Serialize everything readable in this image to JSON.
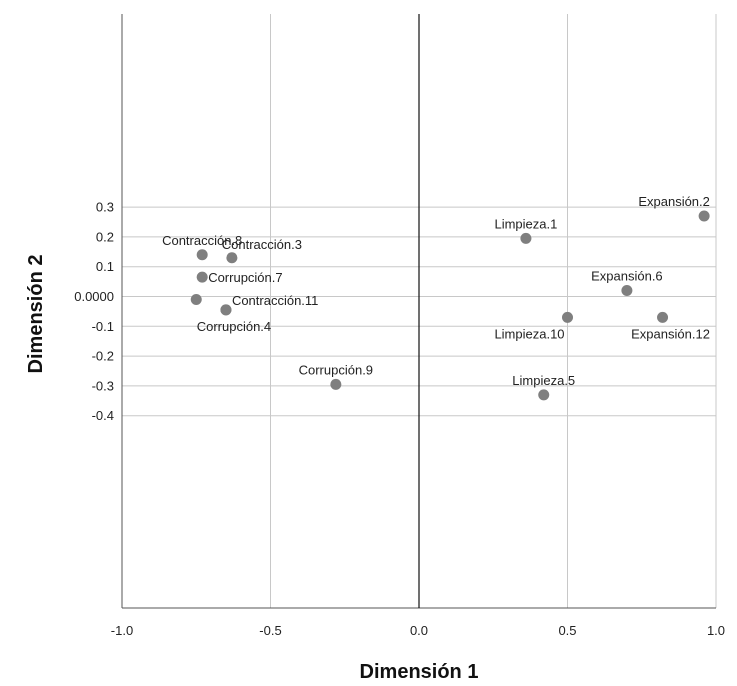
{
  "chart_data": {
    "type": "scatter",
    "xlabel": "Dimensión 1",
    "ylabel": "Dimensión 2",
    "xlim": [
      -1.0,
      1.0
    ],
    "ylim": [
      -1.05,
      0.6
    ],
    "grid": true,
    "x_ticks": [
      {
        "value": -1.0,
        "label": "-1.0"
      },
      {
        "value": -0.5,
        "label": "-0.5"
      },
      {
        "value": 0.0,
        "label": "0.0"
      },
      {
        "value": 0.5,
        "label": "0.5"
      },
      {
        "value": 1.0,
        "label": "1.0"
      }
    ],
    "y_ticks": [
      {
        "value": 0.3,
        "label": "0.3"
      },
      {
        "value": 0.2,
        "label": "0.2"
      },
      {
        "value": 0.1,
        "label": "0.1"
      },
      {
        "value": 0.0,
        "label": "0.0000"
      },
      {
        "value": -0.1,
        "label": "-0.1"
      },
      {
        "value": -0.2,
        "label": "-0.2"
      },
      {
        "value": -0.3,
        "label": "-0.3"
      },
      {
        "value": -0.4,
        "label": "-0.4"
      }
    ],
    "marker_color": "#7f7f7f",
    "points": [
      {
        "label": "Expansión.2",
        "x": 0.96,
        "y": 0.27,
        "label_pos": "above-left"
      },
      {
        "label": "Limpieza.1",
        "x": 0.36,
        "y": 0.195,
        "label_pos": "above"
      },
      {
        "label": "Expansión.6",
        "x": 0.7,
        "y": 0.02,
        "label_pos": "above"
      },
      {
        "label": "Limpieza.10",
        "x": 0.5,
        "y": -0.07,
        "label_pos": "below-left"
      },
      {
        "label": "Expansión.12",
        "x": 0.82,
        "y": -0.07,
        "label_pos": "below"
      },
      {
        "label": "Limpieza.5",
        "x": 0.42,
        "y": -0.33,
        "label_pos": "above"
      },
      {
        "label": "Contracción.8",
        "x": -0.73,
        "y": 0.14,
        "label_pos": "above"
      },
      {
        "label": "Contracción.3",
        "x": -0.63,
        "y": 0.13,
        "label_pos": "above-right"
      },
      {
        "label": "Corrupción.7",
        "x": -0.73,
        "y": 0.065,
        "label_pos": "right"
      },
      {
        "label": "",
        "x": -0.75,
        "y": -0.01,
        "label_pos": "none"
      },
      {
        "label": "Contracción.11",
        "x": -0.65,
        "y": -0.045,
        "label_pos": "right-above"
      },
      {
        "label": "Corrupción.4",
        "x": -0.65,
        "y": -0.045,
        "label_pos": "below"
      },
      {
        "label": "Corrupción.9",
        "x": -0.28,
        "y": -0.295,
        "label_pos": "above"
      }
    ]
  }
}
